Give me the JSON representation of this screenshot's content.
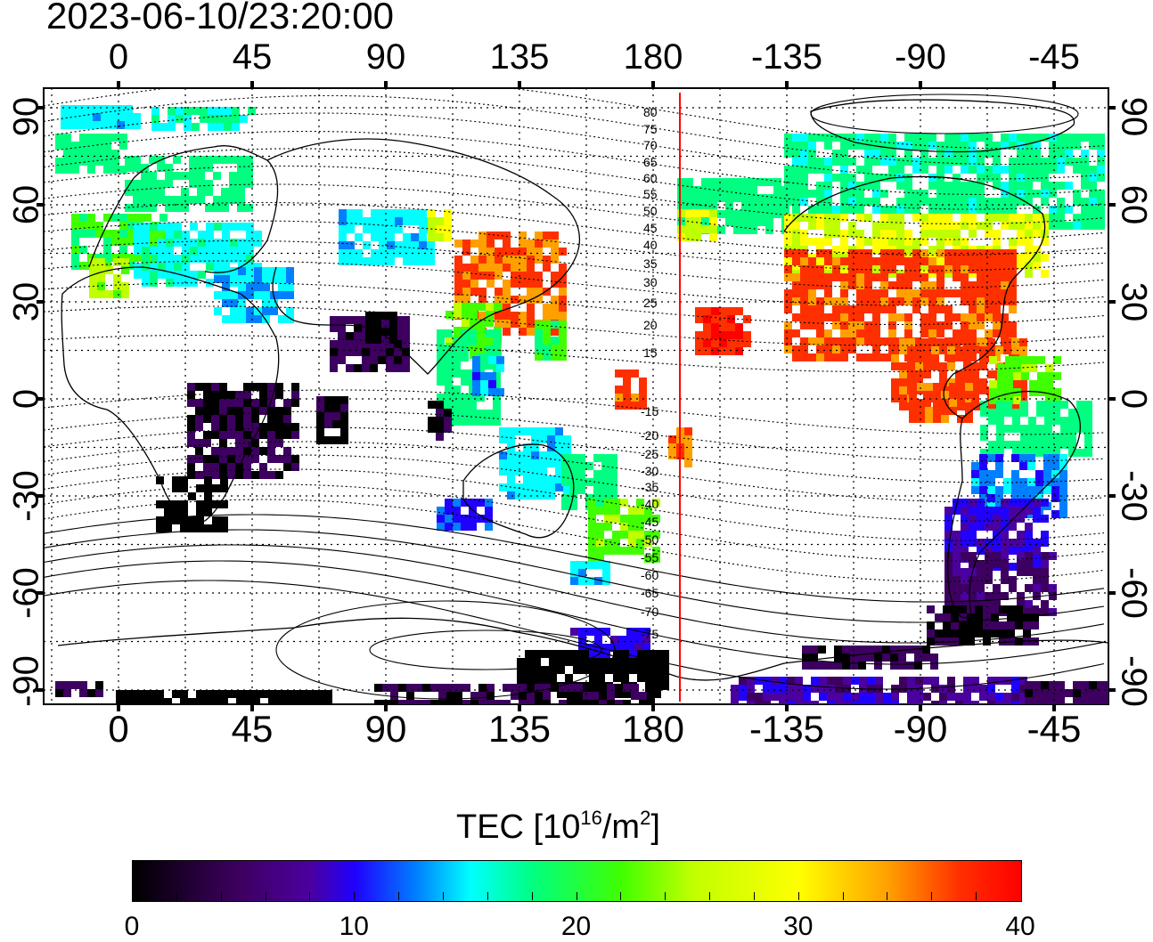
{
  "title": "2023-06-10/23:20:00",
  "lon_ticks": [
    "0",
    "45",
    "90",
    "135",
    "180",
    "-135",
    "-90",
    "-45"
  ],
  "lat_ticks": [
    "90",
    "60",
    "30",
    "0",
    "-30",
    "-60",
    "-90"
  ],
  "contour_labels_north": [
    "80",
    "75",
    "70",
    "65",
    "60",
    "55",
    "50",
    "45",
    "40",
    "35",
    "30",
    "25",
    "20",
    "15"
  ],
  "contour_labels_south": [
    "-15",
    "-20",
    "-25",
    "-30",
    "-35",
    "-40",
    "-45",
    "-50",
    "-55",
    "-60",
    "-65",
    "-70",
    "-75"
  ],
  "colorbar": {
    "title_prefix": "TEC  [10",
    "title_sup1": "16",
    "title_mid": "/m",
    "title_sup2": "2",
    "title_suffix": "]",
    "ticks": [
      "0",
      "10",
      "20",
      "30",
      "40"
    ],
    "min": 0,
    "max": 40
  },
  "colors": {
    "terminator": "#ff0000",
    "grid": "#000000"
  }
}
